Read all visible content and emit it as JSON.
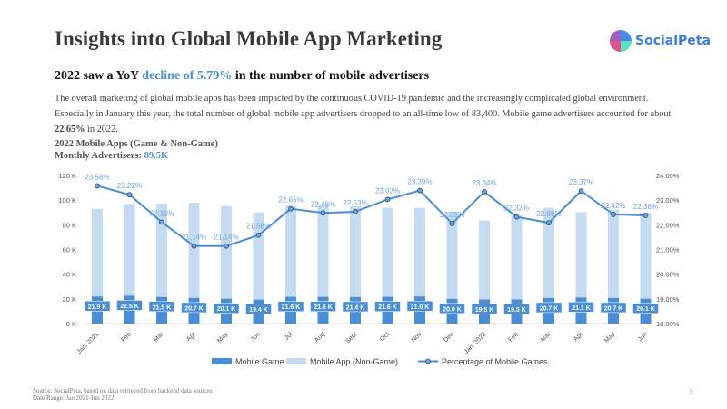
{
  "header": {
    "title": "Insights into Global Mobile App Marketing",
    "logo_text": "SocialPeta"
  },
  "subtitle": {
    "pre": "2022 saw a YoY ",
    "highlight": "decline of 5.79%",
    "post": " in the number of mobile advertisers"
  },
  "description": {
    "text": "The overall marketing of global mobile apps has been impacted by the continuous COVID-19 pandemic and the increasingly complicated global environment. Especially in January this year, the total number of global mobile app advertisers dropped to an all-time low of 83,400. Mobile game advertisers accounted for about ",
    "bold": "22.65%",
    "post": " in 2022."
  },
  "chart_header": {
    "title": "2022 Mobile Apps (Game & Non-Game)",
    "monthly_label": "Monthly Advertisers: ",
    "monthly_value": "89.5K"
  },
  "chart_data": {
    "type": "bar",
    "categories": [
      "Jan. 2021",
      "Feb",
      "Mar",
      "Apr",
      "May",
      "Jun",
      "Jul",
      "Aug",
      "Sept",
      "Oct",
      "Nov",
      "Dec",
      "Jan. 2022",
      "Feb",
      "Mar",
      "Apr",
      "May",
      "Jun"
    ],
    "series": [
      {
        "name": "Mobile Game",
        "values": [
          21.9,
          22.5,
          21.5,
          20.7,
          20.1,
          19.4,
          21.6,
          21.6,
          21.4,
          21.6,
          21.9,
          20.0,
          19.5,
          19.5,
          20.7,
          21.1,
          20.7,
          20.1
        ],
        "labels": [
          "21.9 K",
          "22.5 K",
          "21.5 K",
          "20.7 K",
          "20.1 K",
          "19.4 K",
          "21.6 K",
          "21.6 K",
          "21.4 K",
          "21.6 K",
          "21.9 K",
          "20.0 K",
          "19.5 K",
          "19.5 K",
          "20.7 K",
          "21.1 K",
          "20.7 K",
          "20.1 K"
        ],
        "color": "#4a8fd6"
      },
      {
        "name": "Mobile App (Non-Game)",
        "values": [
          71.0,
          74.4,
          75.7,
          77.2,
          75.0,
          70.5,
          73.8,
          74.5,
          73.6,
          72.2,
          71.7,
          70.7,
          64.0,
          67.9,
          73.1,
          69.2,
          71.6,
          69.7
        ],
        "color": "#c5dbf2"
      },
      {
        "name": "Percentage of Mobile Games",
        "axis": "right",
        "values": [
          23.58,
          23.22,
          22.11,
          21.14,
          21.14,
          21.58,
          22.65,
          22.48,
          22.53,
          23.03,
          23.39,
          22.05,
          23.34,
          22.32,
          22.08,
          23.37,
          22.42,
          22.38
        ],
        "labels": [
          "23.58%",
          "23.22%",
          "22.11%",
          "21.14%",
          "21.14%",
          "21.58%",
          "22.65%",
          "22.48%",
          "22.53%",
          "23.03%",
          "23.39%",
          "22.05%",
          "23.34%",
          "22.32%",
          "22.08%",
          "23.37%",
          "22.42%",
          "22.38%"
        ],
        "color": "#4a8fd6"
      }
    ],
    "ylim": [
      0,
      120
    ],
    "yticks": [
      "0 K",
      "20 K",
      "40 K",
      "60 K",
      "80 K",
      "100 K",
      "120 K"
    ],
    "y2lim": [
      18,
      24
    ],
    "y2ticks": [
      "18.00%",
      "19.00%",
      "20.00%",
      "21.00%",
      "22.00%",
      "23.00%",
      "24.00%"
    ],
    "legend_position": "bottom"
  },
  "footer": {
    "source": "Source: SocialPeta, based on data retrieved from backend data sources",
    "date_range": "Date Range: Jan 2021-Jun 2022",
    "page": "5"
  }
}
